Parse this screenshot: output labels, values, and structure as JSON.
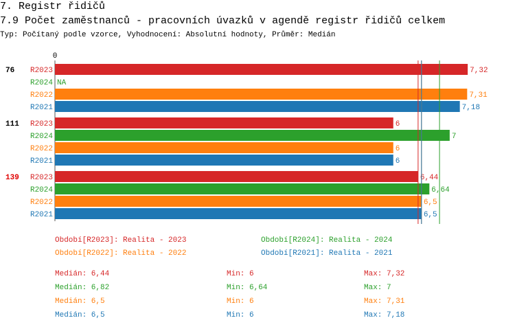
{
  "chart_data": {
    "type": "bar",
    "section": "7. Registr řidičů",
    "title": "7.9 Počet zaměstnanců - pracovních úvazků v agendě registr řidičů celkem",
    "subtitle": "Typ: Počítaný podle vzorce, Vyhodnocení: Absolutní hodnoty, Průměr: Medián",
    "categories": [
      "76",
      "111",
      "139"
    ],
    "category_colors": [
      "#000000",
      "#000000",
      "#e00000"
    ],
    "xlim": [
      0,
      8
    ],
    "xticks": [
      0
    ],
    "series": [
      {
        "name": "R2023",
        "color": "#d62728",
        "values": [
          7.32,
          6,
          6.44
        ],
        "value_labels": [
          "7,32",
          "6",
          "6,44"
        ],
        "legend": "Období[R2023]: Realita - 2023",
        "median": {
          "value": 6.44,
          "label": "Medián: 6,44"
        },
        "min": {
          "value": 6,
          "label": "Min: 6"
        },
        "max": {
          "value": 7.32,
          "label": "Max: 7,32"
        }
      },
      {
        "name": "R2024",
        "color": "#2ca02c",
        "values": [
          null,
          7,
          6.64
        ],
        "value_labels": [
          "NA",
          "7",
          "6,64"
        ],
        "legend": "Období[R2024]: Realita - 2024",
        "median": {
          "value": 6.82,
          "label": "Medián: 6,82"
        },
        "min": {
          "value": 6.64,
          "label": "Min: 6,64"
        },
        "max": {
          "value": 7,
          "label": "Max: 7"
        }
      },
      {
        "name": "R2022",
        "color": "#ff7f0e",
        "values": [
          7.31,
          6,
          6.5
        ],
        "value_labels": [
          "7,31",
          "6",
          "6,5"
        ],
        "legend": "Období[R2022]: Realita - 2022",
        "median": {
          "value": 6.5,
          "label": "Medián: 6,5"
        },
        "min": {
          "value": 6,
          "label": "Min: 6"
        },
        "max": {
          "value": 7.31,
          "label": "Max: 7,31"
        }
      },
      {
        "name": "R2021",
        "color": "#1f77b4",
        "values": [
          7.18,
          6,
          6.5
        ],
        "value_labels": [
          "7,18",
          "6",
          "6,5"
        ],
        "legend": "Období[R2021]: Realita - 2021",
        "median": {
          "value": 6.5,
          "label": "Medián: 6,5"
        },
        "min": {
          "value": 6,
          "label": "Min: 6"
        },
        "max": {
          "value": 7.18,
          "label": "Max: 7,18"
        }
      }
    ]
  }
}
